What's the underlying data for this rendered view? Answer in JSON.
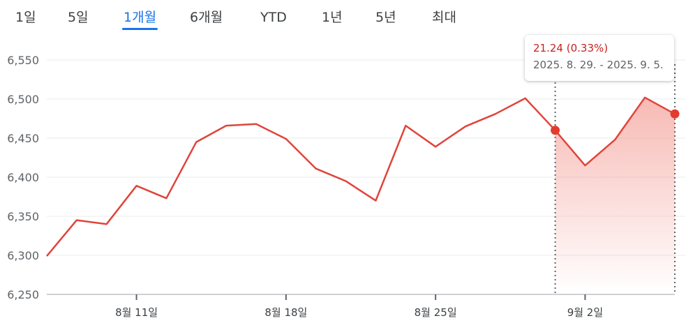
{
  "tabs": [
    {
      "label": "1일",
      "active": false
    },
    {
      "label": "5일",
      "active": false
    },
    {
      "label": "1개월",
      "active": true
    },
    {
      "label": "6개월",
      "active": false
    },
    {
      "label": "YTD",
      "active": false
    },
    {
      "label": "1년",
      "active": false
    },
    {
      "label": "5년",
      "active": false
    },
    {
      "label": "최대",
      "active": false
    }
  ],
  "tooltip": {
    "change": "21.24",
    "percent": "(0.33%)",
    "range": "2025. 8. 29. - 2025. 9. 5."
  },
  "colors": {
    "line": "#e0443a",
    "marker": "#e33b30",
    "fill": "#f28b82",
    "accent": "#1a73e8",
    "change": "#c5221f"
  },
  "chart_data": {
    "type": "line",
    "x": [
      "2025-08-06",
      "2025-08-07",
      "2025-08-08",
      "2025-08-11",
      "2025-08-12",
      "2025-08-13",
      "2025-08-14",
      "2025-08-15",
      "2025-08-18",
      "2025-08-19",
      "2025-08-20",
      "2025-08-21",
      "2025-08-22",
      "2025-08-25",
      "2025-08-26",
      "2025-08-27",
      "2025-08-28",
      "2025-08-29",
      "2025-09-02",
      "2025-09-03",
      "2025-09-04",
      "2025-09-05"
    ],
    "values": [
      6299,
      6345,
      6340,
      6389,
      6373,
      6445,
      6466,
      6468,
      6449,
      6411,
      6395,
      6370,
      6466,
      6439,
      6465,
      6481,
      6501,
      6460,
      6415,
      6448,
      6502,
      6481
    ],
    "ylim": [
      6250,
      6550
    ],
    "yticks": [
      6250,
      6300,
      6350,
      6400,
      6450,
      6500,
      6550
    ],
    "ytick_labels": [
      "6,250",
      "6,300",
      "6,350",
      "6,400",
      "6,450",
      "6,500",
      "6,550"
    ],
    "xticks": [
      {
        "label": "8월 11일",
        "index": 3
      },
      {
        "label": "8월 18일",
        "index": 8
      },
      {
        "label": "8월 25일",
        "index": 13
      },
      {
        "label": "9월 2일",
        "index": 18
      }
    ],
    "selection": {
      "start_index": 17,
      "end_index": 21
    },
    "grid": true,
    "legend": "none"
  }
}
